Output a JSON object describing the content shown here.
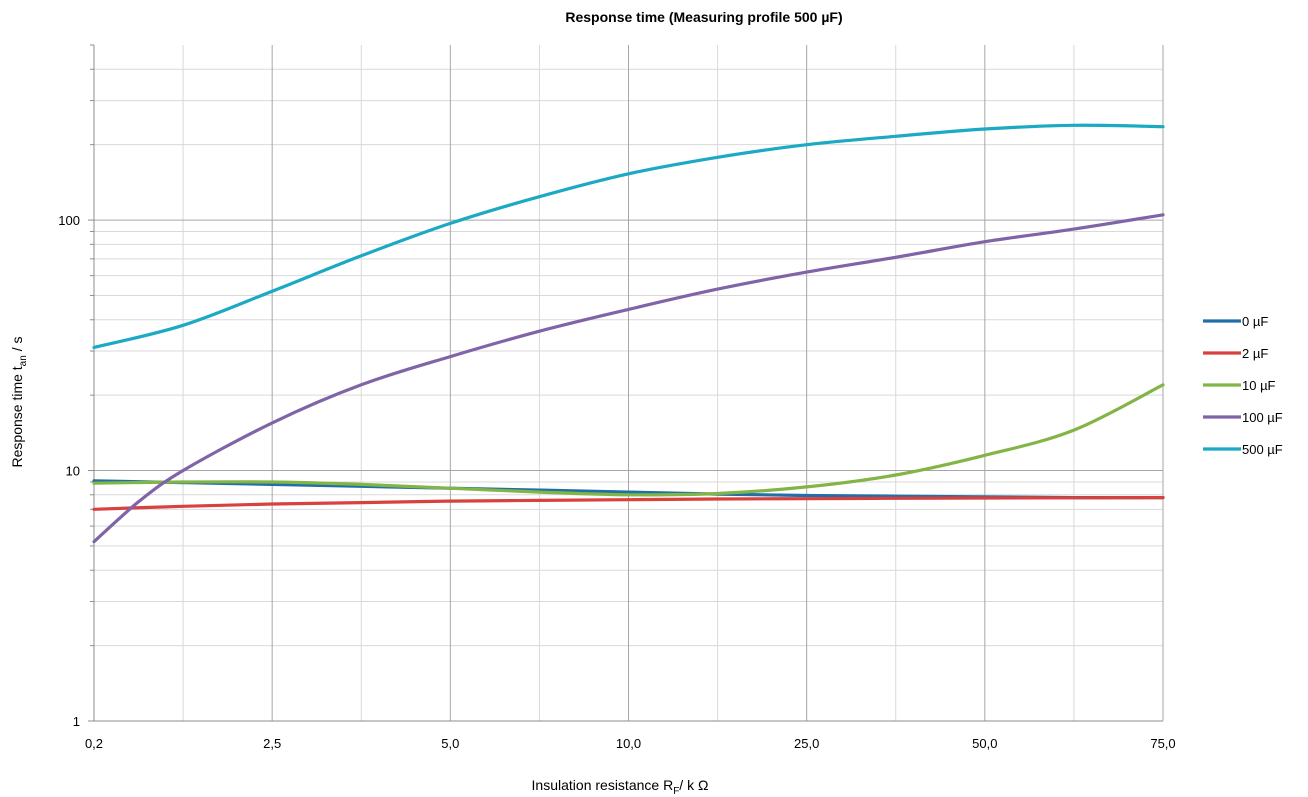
{
  "chart_data": {
    "type": "line",
    "title": "Response time (Measuring profile 500 µF)",
    "xlabel": {
      "main": "Insulation resistance R",
      "sub": "F",
      "tail": "/ k  Ω"
    },
    "ylabel": {
      "main": "Response time t",
      "sub": "an",
      "tail": " / s"
    },
    "x_tick_labels": [
      "0,2",
      "2,5",
      "5,0",
      "10,0",
      "25,0",
      "50,0",
      "75,0"
    ],
    "y_scale": "log",
    "ylim": [
      1,
      500
    ],
    "y_tick_labels": [
      "1",
      "10",
      "100"
    ],
    "grid": true,
    "legend_position": "right",
    "series": [
      {
        "name": "0 µF",
        "color": "#1f6fa8",
        "x": [
          0,
          0.5,
          1,
          1.5,
          2,
          2.5,
          3,
          3.5,
          4,
          4.5,
          5,
          5.5,
          6
        ],
        "y": [
          9.1,
          8.95,
          8.8,
          8.65,
          8.5,
          8.35,
          8.2,
          8.05,
          7.95,
          7.9,
          7.85,
          7.8,
          7.8
        ]
      },
      {
        "name": "2 µF",
        "color": "#d9413e",
        "x": [
          0,
          0.5,
          1,
          1.5,
          2,
          2.5,
          3,
          3.5,
          4,
          4.5,
          5,
          5.5,
          6
        ],
        "y": [
          7.0,
          7.2,
          7.35,
          7.45,
          7.55,
          7.6,
          7.65,
          7.7,
          7.72,
          7.75,
          7.77,
          7.78,
          7.8
        ]
      },
      {
        "name": "10 µF",
        "color": "#82b446",
        "x": [
          0,
          0.5,
          1,
          1.5,
          2,
          2.5,
          3,
          3.5,
          4,
          4.5,
          5,
          5.5,
          6
        ],
        "y": [
          8.9,
          9.0,
          9.0,
          8.8,
          8.5,
          8.2,
          8.0,
          8.1,
          8.6,
          9.6,
          11.5,
          14.5,
          22
        ]
      },
      {
        "name": "100 µF",
        "color": "#7f64a8",
        "x": [
          0,
          0.25,
          0.5,
          1,
          1.5,
          2,
          2.5,
          3,
          3.5,
          4,
          4.5,
          5,
          5.5,
          6
        ],
        "y": [
          5.2,
          7.5,
          10,
          15.5,
          22,
          28.5,
          36,
          44,
          53,
          62,
          71,
          82,
          92,
          105
        ]
      },
      {
        "name": "500 µF",
        "color": "#1ba9c4",
        "x": [
          0,
          0.5,
          1,
          1.5,
          2,
          2.5,
          3,
          3.5,
          4,
          4.5,
          5,
          5.5,
          6
        ],
        "y": [
          31,
          38,
          52,
          72,
          97,
          124,
          153,
          178,
          200,
          216,
          231,
          239,
          236
        ]
      }
    ]
  }
}
